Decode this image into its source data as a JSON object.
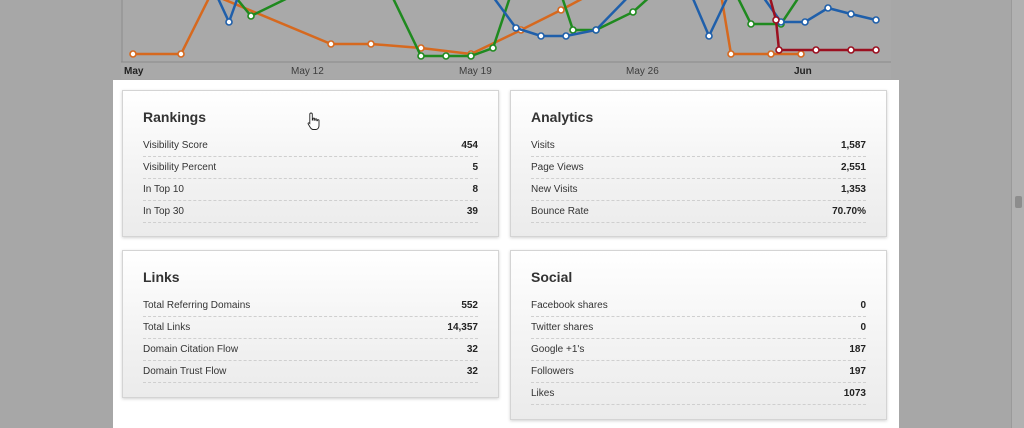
{
  "chart": {
    "x_ticks": [
      {
        "label": "May",
        "bold": true
      },
      {
        "label": "May 12",
        "bold": false
      },
      {
        "label": "May 19",
        "bold": false
      },
      {
        "label": "May 26",
        "bold": false
      },
      {
        "label": "Jun",
        "bold": true
      }
    ],
    "series_colors": {
      "orange": "#d6691f",
      "green": "#1f8a1f",
      "blue": "#1f5faa",
      "red": "#9b1020"
    }
  },
  "cards": {
    "rankings": {
      "title": "Rankings",
      "rows": [
        {
          "label": "Visibility Score",
          "value": "454"
        },
        {
          "label": "Visibility Percent",
          "value": "5"
        },
        {
          "label": "In Top 10",
          "value": "8"
        },
        {
          "label": "In Top 30",
          "value": "39"
        }
      ]
    },
    "analytics": {
      "title": "Analytics",
      "rows": [
        {
          "label": "Visits",
          "value": "1,587"
        },
        {
          "label": "Page Views",
          "value": "2,551"
        },
        {
          "label": "New Visits",
          "value": "1,353"
        },
        {
          "label": "Bounce Rate",
          "value": "70.70%"
        }
      ]
    },
    "links": {
      "title": "Links",
      "rows": [
        {
          "label": "Total Referring Domains",
          "value": "552"
        },
        {
          "label": "Total Links",
          "value": "14,357"
        },
        {
          "label": "Domain Citation Flow",
          "value": "32"
        },
        {
          "label": "Domain Trust Flow",
          "value": "32"
        }
      ]
    },
    "social": {
      "title": "Social",
      "rows": [
        {
          "label": "Facebook shares",
          "value": "0"
        },
        {
          "label": "Twitter shares",
          "value": "0"
        },
        {
          "label": "Google +1's",
          "value": "187"
        },
        {
          "label": "Followers",
          "value": "197"
        },
        {
          "label": "Likes",
          "value": "1073"
        }
      ]
    }
  }
}
